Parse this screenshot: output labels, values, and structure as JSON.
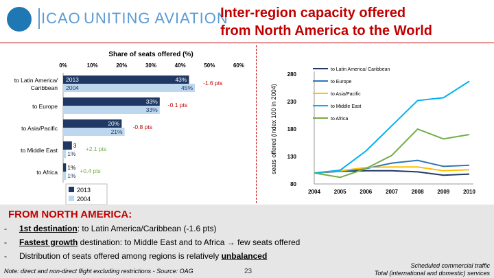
{
  "header": {
    "logo_text": "ICAO",
    "logo_sub": "UNITING AVIATION",
    "title_line1": "Inter-region capacity offered",
    "title_line2": "from North America to the World"
  },
  "colors": {
    "title_red": "#c00000",
    "bar_2013": "#1f3864",
    "bar_2004": "#bdd7ee",
    "latin": "#1f3864",
    "europe": "#2e75b6",
    "asia": "#ffc000",
    "middle_east": "#00b0f0",
    "africa": "#70ad47"
  },
  "chart_data": [
    {
      "type": "bar",
      "title": "Share of seats offered (%)",
      "xlim": [
        0,
        60
      ],
      "xticks": [
        "0%",
        "10%",
        "20%",
        "30%",
        "40%",
        "50%",
        "60%"
      ],
      "categories": [
        "to Latin America/ Caribbean",
        "to Europe",
        "to Asia/Pacific",
        "to Middle East",
        "to Africa"
      ],
      "series": [
        {
          "name": "2013",
          "values": [
            43,
            33,
            20,
            3,
            1
          ],
          "labels": [
            "43%",
            "33%",
            "20%",
            "3",
            "1%"
          ]
        },
        {
          "name": "2004",
          "values": [
            45,
            33,
            21,
            1,
            1
          ],
          "labels": [
            "45%",
            "33%",
            "21%",
            "1%",
            "1%"
          ]
        }
      ],
      "annotations": [
        "-1.6 pts",
        "-0.1 pts",
        "-0.8 pts",
        "+2.1 pts",
        "+0.4 pts"
      ],
      "annotation_colors": [
        "#c00000",
        "#c00000",
        "#c00000",
        "#70ad47",
        "#70ad47"
      ]
    },
    {
      "type": "line",
      "ylabel": "seats offered (index 100 in 2004)",
      "x": [
        "2004",
        "2005",
        "2006",
        "2007",
        "2008",
        "2009",
        "2010"
      ],
      "ylim": [
        80,
        280
      ],
      "yticks": [
        80,
        130,
        180,
        230,
        280
      ],
      "series": [
        {
          "name": "to Latin America/ Caribbean",
          "values": [
            100,
            103,
            104,
            104,
            102,
            96,
            98
          ]
        },
        {
          "name": "to Europe",
          "values": [
            100,
            103,
            108,
            118,
            123,
            112,
            114
          ]
        },
        {
          "name": "to Asia/Pacific",
          "values": [
            100,
            104,
            110,
            111,
            111,
            104,
            106
          ]
        },
        {
          "name": "to Middle East",
          "values": [
            100,
            105,
            140,
            186,
            232,
            237,
            267
          ]
        },
        {
          "name": "to Africa",
          "values": [
            100,
            92,
            108,
            132,
            180,
            162,
            170
          ]
        }
      ]
    }
  ],
  "bottom": {
    "heading": "FROM NORTH AMERICA:",
    "b1_bold": "1st destination",
    "b1_rest": ": to Latin America/Caribbean (-1.6 pts)",
    "b2_bold": "Fastest growth",
    "b2_rest": " destination: to Middle East and to Africa → few seats offered",
    "b3_pre": "Distribution of seats offered among regions is relatively ",
    "b3_bold": "unbalanced",
    "note": "Note: direct and non-direct flight excluding restrictions - Source: OAG",
    "page": "23",
    "right_note1": "Scheduled commercial traffic",
    "right_note2": "Total (international and domestic) services"
  }
}
